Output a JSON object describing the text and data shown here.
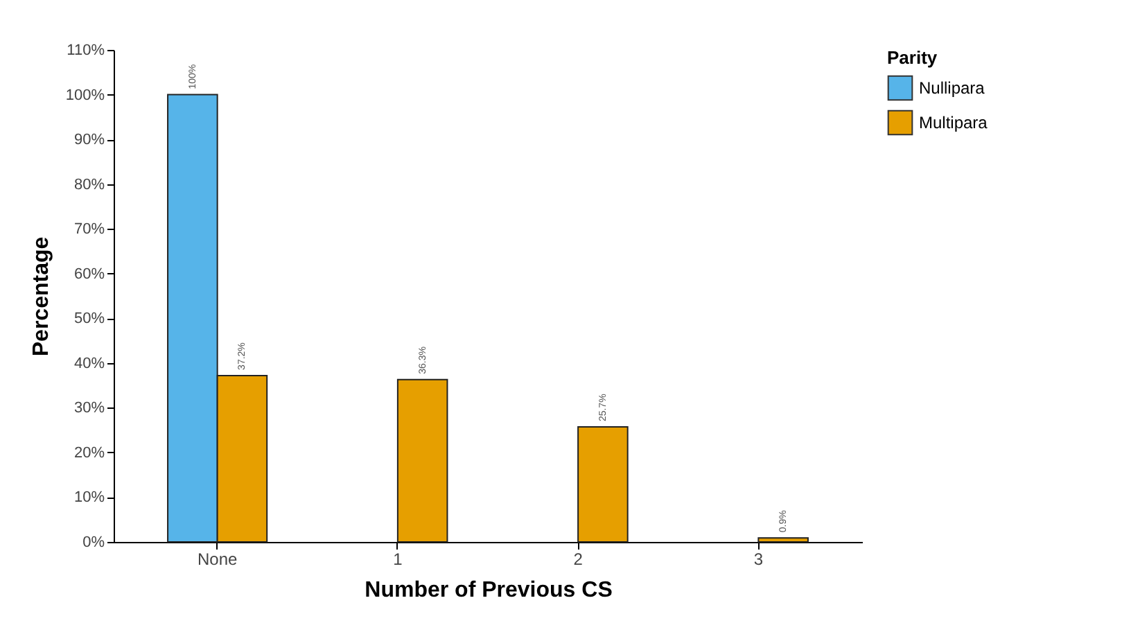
{
  "chart_data": {
    "type": "bar",
    "xlabel": "Number of Previous CS",
    "ylabel": "Percentage",
    "legend_title": "Parity",
    "categories": [
      "None",
      "1",
      "2",
      "3"
    ],
    "series": [
      {
        "name": "Nullipara",
        "color": "#56b4e9",
        "values": [
          100,
          null,
          null,
          null
        ],
        "value_labels": [
          "100%",
          null,
          null,
          null
        ]
      },
      {
        "name": "Multipara",
        "color": "#e69f00",
        "values": [
          37.2,
          36.3,
          25.7,
          0.9
        ],
        "value_labels": [
          "37.2%",
          "36.3%",
          "25.7%",
          "0.9%"
        ]
      }
    ],
    "ylim": [
      0,
      110
    ],
    "yticks": [
      {
        "value": 0,
        "label": "0%"
      },
      {
        "value": 10,
        "label": "10%"
      },
      {
        "value": 20,
        "label": "20%"
      },
      {
        "value": 30,
        "label": "30%"
      },
      {
        "value": 40,
        "label": "40%"
      },
      {
        "value": 50,
        "label": "50%"
      },
      {
        "value": 60,
        "label": "60%"
      },
      {
        "value": 70,
        "label": "70%"
      },
      {
        "value": 80,
        "label": "80%"
      },
      {
        "value": 90,
        "label": "90%"
      },
      {
        "value": 100,
        "label": "100%"
      },
      {
        "value": 110,
        "label": "110%"
      }
    ],
    "grid": false,
    "legend": "right"
  }
}
